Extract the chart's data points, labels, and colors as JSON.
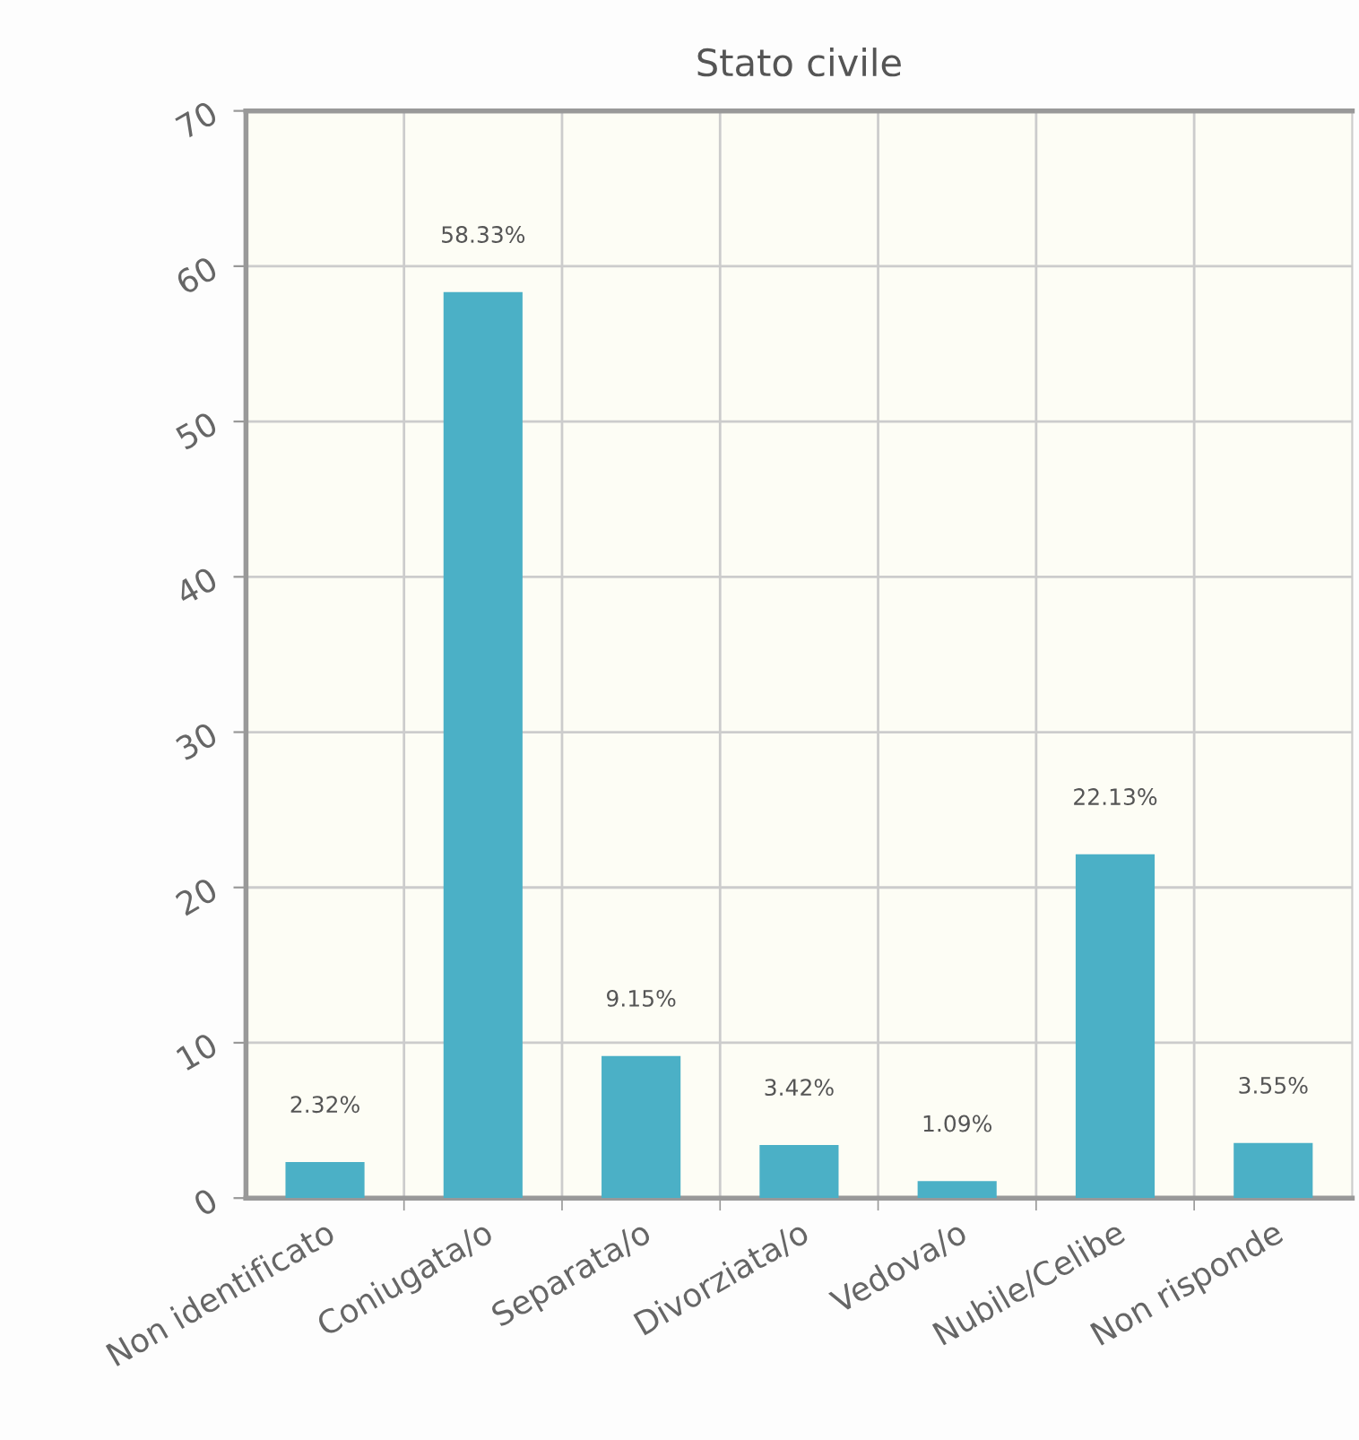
{
  "chart_data": {
    "type": "bar",
    "title": "Stato civile",
    "categories": [
      "Non identificato",
      "Coniugata/o",
      "Separata/o",
      "Divorziata/o",
      "Vedova/o",
      "Nubile/Celibe",
      "Non risponde"
    ],
    "values": [
      2.32,
      58.33,
      9.15,
      3.42,
      1.09,
      22.13,
      3.55
    ],
    "value_labels": [
      "2.32%",
      "58.33%",
      "9.15%",
      "3.42%",
      "1.09%",
      "22.13%",
      "3.55%"
    ],
    "color": "#4bb0c6",
    "ylim": [
      0,
      70
    ],
    "yticks": [
      0,
      10,
      20,
      30,
      40,
      50,
      60,
      70
    ],
    "grid": true
  }
}
